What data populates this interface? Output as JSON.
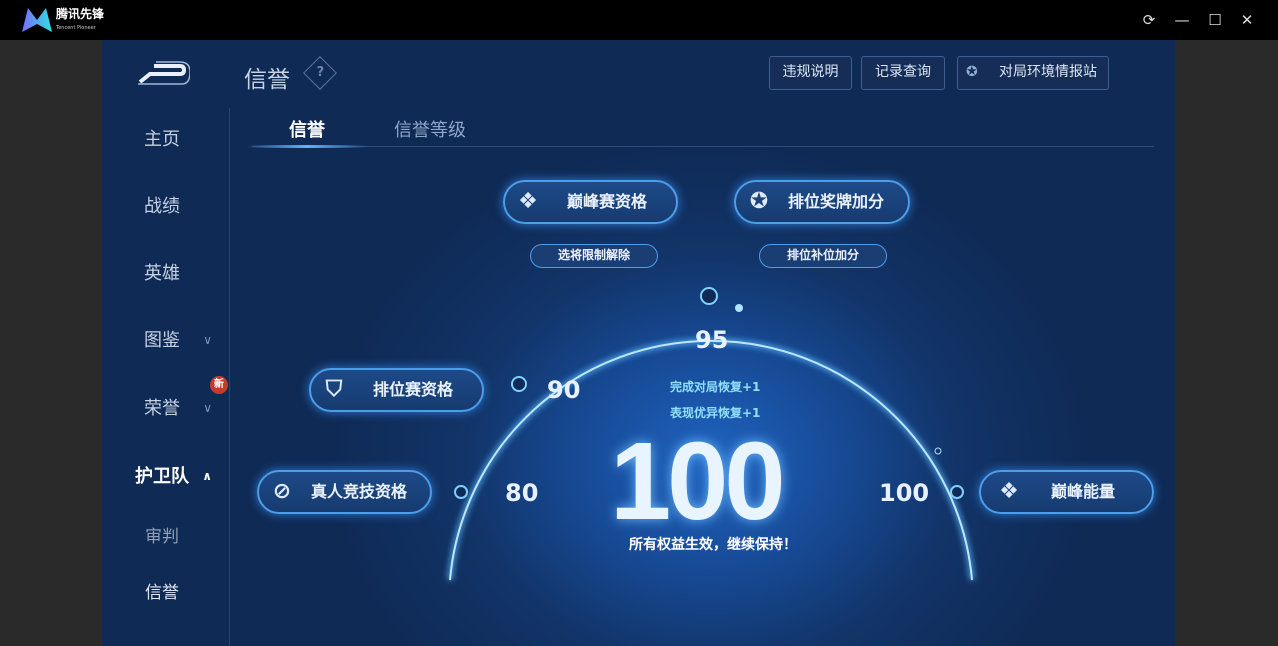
{
  "titlebar": {
    "logo_text": "腾讯先锋",
    "logo_sub": "Tencent Pioneer",
    "buttons": [
      "refresh-icon",
      "minimize-icon",
      "maximize-icon",
      "close-icon"
    ]
  },
  "header": {
    "title": "信誉",
    "help": "?",
    "buttons": [
      "违规说明",
      "记录查询",
      "对局环境情报站"
    ]
  },
  "sidebar": {
    "items": [
      {
        "label": "主页"
      },
      {
        "label": "战绩"
      },
      {
        "label": "英雄"
      },
      {
        "label": "图鉴"
      },
      {
        "label": "荣誉",
        "badge": "新"
      },
      {
        "label": "护卫队"
      },
      {
        "label": "审判"
      },
      {
        "label": "信誉"
      }
    ]
  },
  "tabs": [
    {
      "label": "信誉",
      "active": true
    },
    {
      "label": "信誉等级",
      "active": false
    }
  ],
  "privileges": {
    "peak": "巅峰赛资格",
    "rank_medal": "排位奖牌加分",
    "pick_unlock": "选将限制解除",
    "rank_fill": "排位补位加分",
    "ranked": "排位赛资格",
    "human": "真人竞技资格",
    "peak_energy": "巅峰能量"
  },
  "gauge": {
    "marks": [
      "80",
      "90",
      "95",
      "100"
    ],
    "score": "100",
    "recover1": "完成对局恢复+1",
    "recover2": "表现优异恢复+1",
    "status": "所有权益生效，继续保持！"
  },
  "colors": {
    "accent": "#4c9ee8",
    "background": "#123468"
  }
}
